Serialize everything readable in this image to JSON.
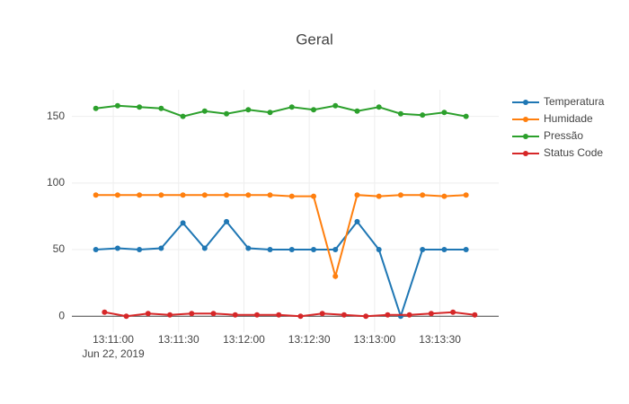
{
  "chart_data": {
    "type": "line",
    "title": "Geral",
    "x": [
      "2019-06-22 13:10:52",
      "2019-06-22 13:11:02",
      "2019-06-22 13:11:12",
      "2019-06-22 13:11:22",
      "2019-06-22 13:11:32",
      "2019-06-22 13:11:42",
      "2019-06-22 13:11:52",
      "2019-06-22 13:12:02",
      "2019-06-22 13:12:12",
      "2019-06-22 13:12:22",
      "2019-06-22 13:12:32",
      "2019-06-22 13:12:42",
      "2019-06-22 13:12:52",
      "2019-06-22 13:13:02",
      "2019-06-22 13:13:12",
      "2019-06-22 13:13:22",
      "2019-06-22 13:13:32",
      "2019-06-22 13:13:42"
    ],
    "series": [
      {
        "name": "Temperatura",
        "color": "#1f77b4",
        "values": [
          50,
          51,
          50,
          51,
          70,
          51,
          71,
          51,
          50,
          50,
          50,
          50,
          71,
          50,
          0,
          50,
          50,
          50
        ]
      },
      {
        "name": "Humidade",
        "color": "#ff7f0e",
        "values": [
          91,
          91,
          91,
          91,
          91,
          91,
          91,
          91,
          91,
          90,
          90,
          30,
          91,
          90,
          91,
          91,
          90,
          91
        ]
      },
      {
        "name": "Pressão",
        "color": "#2ca02c",
        "values": [
          156,
          158,
          157,
          156,
          150,
          154,
          152,
          155,
          153,
          157,
          155,
          158,
          154,
          157,
          152,
          151,
          153,
          150
        ]
      },
      {
        "name": "Status Code",
        "color": "#d62728",
        "x": [
          "2019-06-22 13:10:56",
          "2019-06-22 13:11:06",
          "2019-06-22 13:11:16",
          "2019-06-22 13:11:26",
          "2019-06-22 13:11:36",
          "2019-06-22 13:11:46",
          "2019-06-22 13:11:56",
          "2019-06-22 13:12:06",
          "2019-06-22 13:12:16",
          "2019-06-22 13:12:26",
          "2019-06-22 13:12:36",
          "2019-06-22 13:12:46",
          "2019-06-22 13:12:56",
          "2019-06-22 13:13:06",
          "2019-06-22 13:13:16",
          "2019-06-22 13:13:26",
          "2019-06-22 13:13:36",
          "2019-06-22 13:13:46"
        ],
        "values": [
          3,
          0,
          2,
          1,
          2,
          2,
          1,
          1,
          1,
          0,
          2,
          1,
          0,
          1,
          1,
          2,
          3,
          1
        ]
      }
    ],
    "xlim": [
      "2019-06-22 13:10:41",
      "2019-06-22 13:13:57"
    ],
    "xticks": [
      {
        "value": "2019-06-22 13:11:00",
        "label": "13:11:00"
      },
      {
        "value": "2019-06-22 13:11:30",
        "label": "13:11:30"
      },
      {
        "value": "2019-06-22 13:12:00",
        "label": "13:12:00"
      },
      {
        "value": "2019-06-22 13:12:30",
        "label": "13:12:30"
      },
      {
        "value": "2019-06-22 13:13:00",
        "label": "13:13:00"
      },
      {
        "value": "2019-06-22 13:13:30",
        "label": "13:13:30"
      }
    ],
    "x_date_label": "Jun 22, 2019",
    "ylim": [
      -12,
      170
    ],
    "yticks": [
      0,
      50,
      100,
      150
    ],
    "grid": true
  }
}
